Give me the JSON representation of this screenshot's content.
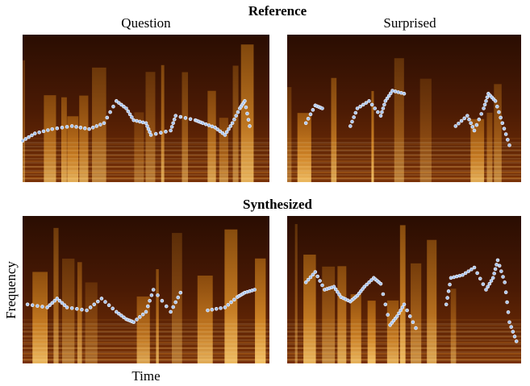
{
  "header": {
    "title": "Reference",
    "columns": [
      "Question",
      "Surprised"
    ]
  },
  "section2": {
    "title": "Synthesized"
  },
  "axes": {
    "y": "Frequency",
    "x": "Time"
  }
}
